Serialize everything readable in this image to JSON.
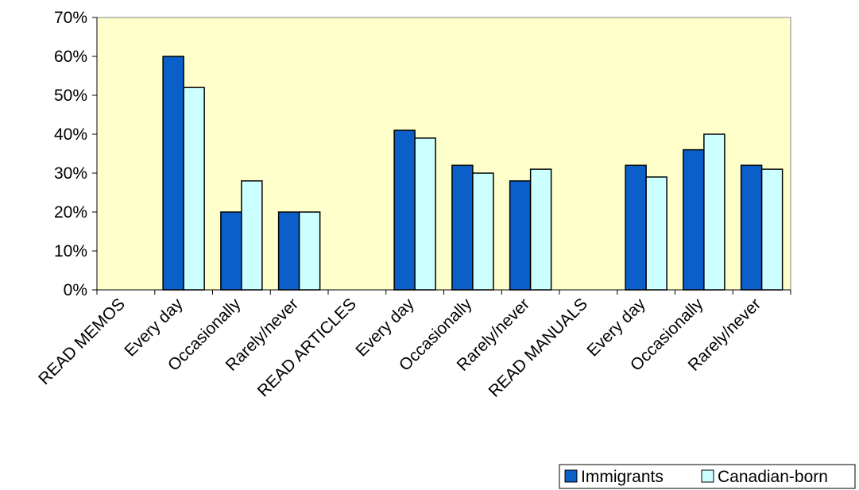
{
  "chart_data": {
    "type": "bar",
    "categories": [
      "READ MEMOS",
      "Every day",
      "Occasionally",
      "Rarely/never",
      "READ ARTICLES",
      "Every day",
      "Occasionally",
      "Rarely/never",
      "READ MANUALS",
      "Every day",
      "Occasionally",
      "Rarely/never"
    ],
    "series": [
      {
        "name": "Immigrants",
        "values": [
          null,
          60,
          20,
          20,
          null,
          41,
          32,
          28,
          null,
          32,
          36,
          32
        ],
        "color": "#0b5fc8"
      },
      {
        "name": "Canadian-born",
        "values": [
          null,
          52,
          28,
          20,
          null,
          39,
          30,
          31,
          null,
          29,
          40,
          31
        ],
        "color": "#ccffff"
      }
    ],
    "ylim": [
      0,
      70
    ],
    "yticks": [
      0,
      10,
      20,
      30,
      40,
      50,
      60,
      70
    ],
    "ytick_labels": [
      "0%",
      "10%",
      "20%",
      "30%",
      "40%",
      "50%",
      "60%",
      "70%"
    ],
    "title": "",
    "xlabel": "",
    "ylabel": "",
    "plot_background": "#ffffcc",
    "legend_position": "bottom-right",
    "grid": false
  }
}
